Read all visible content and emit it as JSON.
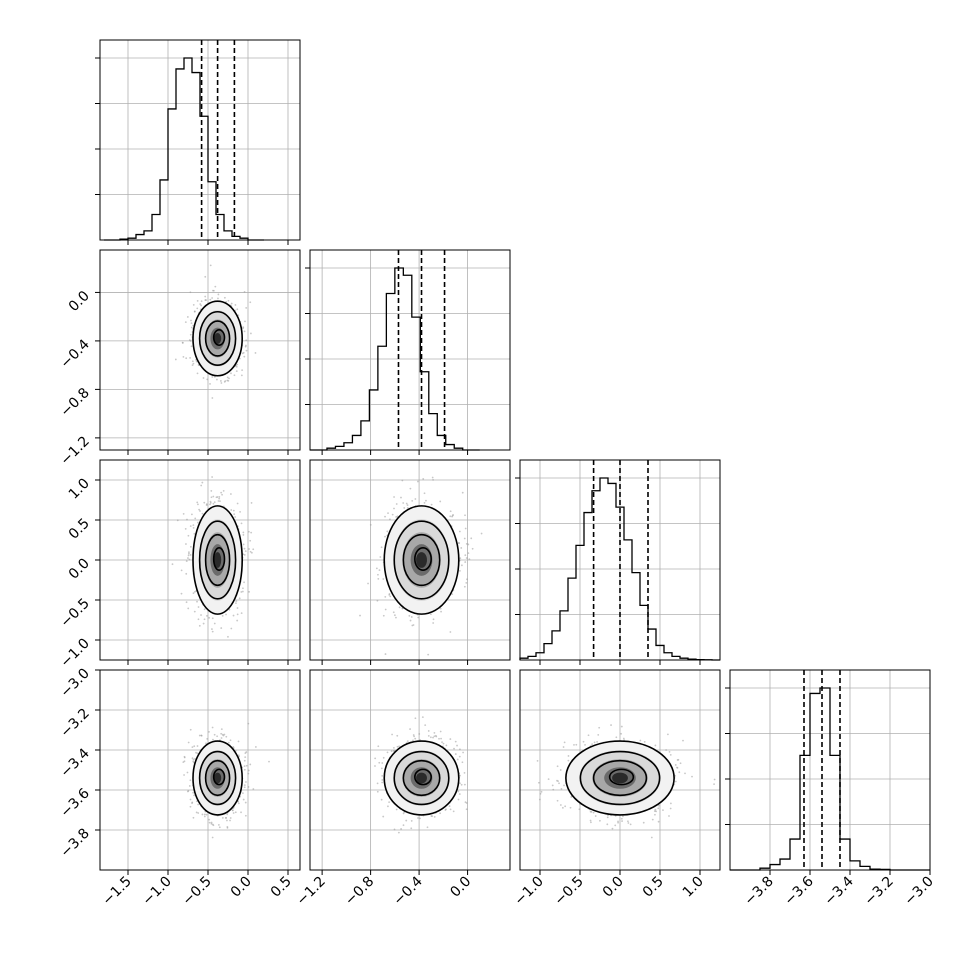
{
  "chart_data": {
    "type": "corner",
    "parameters": 4,
    "grid": true,
    "colors": {
      "line": "#000000",
      "grid": "#b0b0b0",
      "points": "#9a9a9a"
    },
    "marginals": [
      {
        "param": 0,
        "bins_start": -1.8,
        "bin_width": 0.1,
        "heights": [
          0,
          0,
          0.005,
          0.01,
          0.03,
          0.05,
          0.14,
          0.33,
          0.72,
          0.94,
          1.0,
          0.92,
          0.68,
          0.32,
          0.14,
          0.05,
          0.02,
          0.01,
          0,
          0
        ],
        "quantiles": [
          -0.58,
          -0.38,
          -0.17
        ],
        "x_range": [
          -1.85,
          0.65
        ]
      },
      {
        "param": 1,
        "bins_start": -1.3,
        "bin_width": 0.07,
        "heights": [
          0,
          0,
          0.01,
          0.02,
          0.04,
          0.08,
          0.16,
          0.33,
          0.57,
          0.86,
          1.0,
          0.96,
          0.73,
          0.43,
          0.2,
          0.08,
          0.03,
          0.01,
          0,
          0
        ],
        "quantiles": [
          -0.57,
          -0.38,
          -0.19
        ],
        "x_range": [
          -1.3,
          0.35
        ]
      },
      {
        "param": 2,
        "bins_start": -1.25,
        "bin_width": 0.1,
        "heights": [
          0.01,
          0.02,
          0.04,
          0.09,
          0.16,
          0.27,
          0.45,
          0.63,
          0.81,
          0.93,
          1.0,
          0.97,
          0.84,
          0.66,
          0.48,
          0.3,
          0.17,
          0.08,
          0.04,
          0.02,
          0.01,
          0.005,
          0.002,
          0.001,
          0
        ],
        "quantiles": [
          -0.33,
          0.0,
          0.35
        ],
        "x_range": [
          -1.25,
          1.25
        ]
      },
      {
        "param": 3,
        "bins_start": -4.0,
        "bin_width": 0.05,
        "heights": [
          0,
          0,
          0,
          0.01,
          0.03,
          0.06,
          0.17,
          0.63,
          0.97,
          1.0,
          0.63,
          0.17,
          0.05,
          0.02,
          0.005,
          0.003,
          0,
          0,
          0,
          0
        ],
        "quantiles": [
          -3.63,
          -3.54,
          -3.45
        ],
        "x_range": [
          -4.0,
          -3.0
        ]
      }
    ],
    "pair_panels": [
      {
        "row": 1,
        "col": 0,
        "center": [
          -0.38,
          -0.38
        ],
        "sd": [
          0.15,
          0.15
        ]
      },
      {
        "row": 2,
        "col": 0,
        "center": [
          -0.38,
          0.0
        ],
        "sd": [
          0.15,
          0.33
        ]
      },
      {
        "row": 2,
        "col": 1,
        "center": [
          -0.38,
          0.0
        ],
        "sd": [
          0.15,
          0.33
        ]
      },
      {
        "row": 3,
        "col": 0,
        "center": [
          -0.38,
          -3.54
        ],
        "sd": [
          0.15,
          0.09
        ]
      },
      {
        "row": 3,
        "col": 1,
        "center": [
          -0.38,
          -3.54
        ],
        "sd": [
          0.15,
          0.09
        ]
      },
      {
        "row": 3,
        "col": 2,
        "center": [
          0.0,
          -3.54
        ],
        "sd": [
          0.33,
          0.09
        ]
      }
    ],
    "x_axes": [
      {
        "range": [
          -1.85,
          0.65
        ],
        "ticks": [
          -1.5,
          -1.0,
          -0.5,
          0.0,
          0.5
        ],
        "labels": [
          "−1.5",
          "−1.0",
          "−0.5",
          "0.0",
          "0.5"
        ]
      },
      {
        "range": [
          -1.3,
          0.35
        ],
        "ticks": [
          -1.2,
          -0.8,
          -0.4,
          0.0
        ],
        "labels": [
          "−1.2",
          "−0.8",
          "−0.4",
          "0.0"
        ]
      },
      {
        "range": [
          -1.25,
          1.25
        ],
        "ticks": [
          -1.0,
          -0.5,
          0.0,
          0.5,
          1.0
        ],
        "labels": [
          "−1.0",
          "−0.5",
          "0.0",
          "0.5",
          "1.0"
        ]
      },
      {
        "range": [
          -4.0,
          -3.0
        ],
        "ticks": [
          -3.8,
          -3.6,
          -3.4,
          -3.2,
          -3.0
        ],
        "labels": [
          "−3.8",
          "−3.6",
          "−3.4",
          "−3.2",
          "−3.0"
        ]
      }
    ],
    "y_axes": [
      null,
      {
        "range": [
          -1.3,
          0.35
        ],
        "ticks": [
          -1.2,
          -0.8,
          -0.4,
          0.0
        ],
        "labels": [
          "−1.2",
          "−0.8",
          "−0.4",
          "0.0"
        ]
      },
      {
        "range": [
          -1.25,
          1.25
        ],
        "ticks": [
          -1.0,
          -0.5,
          0.0,
          0.5,
          1.0
        ],
        "labels": [
          "−1.0",
          "−0.5",
          "0.0",
          "0.5",
          "1.0"
        ]
      },
      {
        "range": [
          -4.0,
          -3.0
        ],
        "ticks": [
          -3.8,
          -3.6,
          -3.4,
          -3.2,
          -3.0
        ],
        "labels": [
          "−3.8",
          "−3.6",
          "−3.4",
          "−3.2",
          "−3.0"
        ]
      }
    ],
    "title": "",
    "xlabel": "",
    "ylabel": ""
  }
}
